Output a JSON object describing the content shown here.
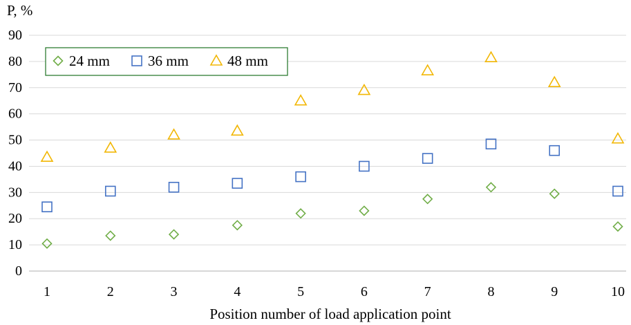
{
  "chart_data": {
    "type": "scatter",
    "ylabel": "P, %",
    "xlabel": "Position number of load application point",
    "xlim": [
      1,
      10
    ],
    "ylim": [
      0,
      90
    ],
    "x_ticks": [
      "1",
      "2",
      "3",
      "4",
      "5",
      "6",
      "7",
      "8",
      "9",
      "10"
    ],
    "y_ticks": [
      "0",
      "10",
      "20",
      "30",
      "40",
      "50",
      "60",
      "70",
      "80",
      "90"
    ],
    "grid": "horizontal",
    "legend_position": "top-left",
    "x": [
      1,
      2,
      3,
      4,
      5,
      6,
      7,
      8,
      9,
      10
    ],
    "series": [
      {
        "name": "24 mm",
        "marker": "diamond",
        "color": "#70AD47",
        "values": [
          10.5,
          13.5,
          14,
          17.5,
          22,
          23,
          27.5,
          32,
          29.5,
          17
        ]
      },
      {
        "name": "36 mm",
        "marker": "square",
        "color": "#4472C4",
        "values": [
          24.5,
          30.5,
          32,
          33.5,
          36,
          40,
          43,
          48.5,
          46,
          30.5
        ]
      },
      {
        "name": "48 mm",
        "marker": "triangle",
        "color": "#F2B705",
        "values": [
          43.5,
          47,
          52,
          53.5,
          65,
          69,
          76.5,
          81.5,
          72,
          50.5
        ]
      }
    ]
  }
}
